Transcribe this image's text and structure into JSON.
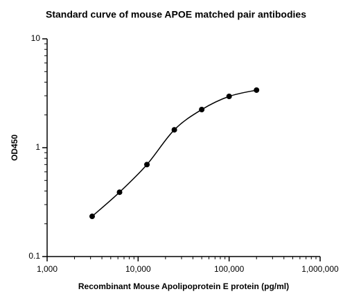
{
  "chart_data": {
    "type": "scatter",
    "title": "Standard curve of mouse APOE matched pair antibodies",
    "x_label": "Recombinant Mouse Apolipoprotein E protein (pg/ml)",
    "y_label": "OD450",
    "x_scale": "log",
    "y_scale": "log",
    "minor_ticks": true,
    "fit_curve": true,
    "xlim": [
      1000,
      1000000
    ],
    "xticks": [
      {
        "value": 1000,
        "label": "1,000"
      },
      {
        "value": 10000,
        "label": "10,000"
      },
      {
        "value": 100000,
        "label": "100,000"
      },
      {
        "value": 1000000,
        "label": "1,000,000"
      }
    ],
    "ylim": [
      0.1,
      10
    ],
    "yticks": [
      0.1,
      1,
      10
    ],
    "series": [
      {
        "color": "#000000",
        "x": [
          3125,
          6250,
          12500,
          25000,
          50000,
          100000,
          200000
        ],
        "values": [
          0.234,
          0.39,
          0.7,
          1.46,
          2.24,
          2.96,
          3.38
        ]
      }
    ]
  }
}
